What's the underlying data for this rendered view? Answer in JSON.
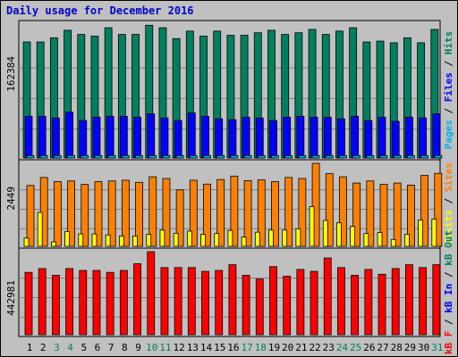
{
  "title": "Daily usage for December 2016",
  "colors": {
    "background": "#c0c0c0",
    "plot_bg": "#c0c0c0",
    "pages": "#00b0f0",
    "files": "#0000ff",
    "hits": "#008060",
    "visits": "#ffff00",
    "sites": "#ff8000",
    "kbin": "#0000ff",
    "kbout": "#008060",
    "kbf": "#ff0000",
    "weekend_day": "#008060",
    "weekday": "#000000"
  },
  "panels": [
    {
      "id": "top",
      "ymax_label": "162384",
      "side_labels": [
        {
          "text": "Pages",
          "color": "#00b0f0"
        },
        {
          "text": " / ",
          "color": "#000000"
        },
        {
          "text": "Files",
          "color": "#0000ff"
        },
        {
          "text": " / ",
          "color": "#000000"
        },
        {
          "text": "Hits",
          "color": "#008060"
        }
      ]
    },
    {
      "id": "mid",
      "ymax_label": "2449",
      "side_labels": [
        {
          "text": "Visits",
          "color": "#ffff00"
        },
        {
          "text": " / ",
          "color": "#000000"
        },
        {
          "text": "Sites",
          "color": "#ff8000"
        }
      ]
    },
    {
      "id": "bot",
      "ymax_label": "442981",
      "side_labels": [
        {
          "text": "kB F",
          "color": "#ff0000"
        },
        {
          "text": " / ",
          "color": "#000000"
        },
        {
          "text": "kB In",
          "color": "#0000ff"
        },
        {
          "text": " / ",
          "color": "#000000"
        },
        {
          "text": "kB Out",
          "color": "#008060"
        }
      ]
    }
  ],
  "chart_data": [
    {
      "type": "bar",
      "title": "Daily usage for December 2016",
      "categories": [
        "1",
        "2",
        "3",
        "4",
        "5",
        "6",
        "7",
        "8",
        "9",
        "10",
        "11",
        "12",
        "13",
        "14",
        "15",
        "16",
        "17",
        "18",
        "19",
        "20",
        "21",
        "22",
        "23",
        "24",
        "25",
        "26",
        "27",
        "28",
        "29",
        "30",
        "31"
      ],
      "weekend_days": [
        "3",
        "4",
        "10",
        "11",
        "17",
        "18",
        "24",
        "25",
        "31"
      ],
      "ylim": [
        0,
        162384
      ],
      "series": [
        {
          "name": "Hits",
          "values": [
            141000,
            141000,
            146000,
            155000,
            150000,
            148000,
            158000,
            150000,
            150000,
            161000,
            158000,
            145000,
            154000,
            148000,
            154000,
            149000,
            149000,
            152000,
            155000,
            150000,
            152000,
            156000,
            150000,
            154000,
            158000,
            141000,
            142000,
            140000,
            146000,
            140000,
            156000
          ]
        },
        {
          "name": "Files",
          "values": [
            52000,
            52000,
            50000,
            57000,
            47000,
            51000,
            52000,
            52000,
            51000,
            55000,
            50000,
            47000,
            56000,
            52000,
            49000,
            48000,
            51000,
            50000,
            47000,
            51000,
            52000,
            51000,
            51000,
            49000,
            52000,
            47000,
            51000,
            46000,
            51000,
            50000,
            55000
          ]
        },
        {
          "name": "Pages",
          "values": [
            5000,
            5000,
            5000,
            5000,
            5000,
            5000,
            5000,
            5000,
            5000,
            5000,
            5000,
            5000,
            5000,
            5000,
            5000,
            5000,
            5000,
            5000,
            5000,
            5000,
            5000,
            5000,
            5000,
            5000,
            5000,
            5000,
            5000,
            5000,
            5000,
            5000,
            5000
          ]
        }
      ]
    },
    {
      "type": "bar",
      "categories": [
        "1",
        "2",
        "3",
        "4",
        "5",
        "6",
        "7",
        "8",
        "9",
        "10",
        "11",
        "12",
        "13",
        "14",
        "15",
        "16",
        "17",
        "18",
        "19",
        "20",
        "21",
        "22",
        "23",
        "24",
        "25",
        "26",
        "27",
        "28",
        "29",
        "30",
        "31"
      ],
      "ylim": [
        0,
        2449
      ],
      "series": [
        {
          "name": "Sites",
          "values": [
            1810,
            2040,
            1920,
            1940,
            1840,
            1920,
            1940,
            1960,
            1900,
            2060,
            2010,
            1680,
            1960,
            1850,
            1980,
            2080,
            1950,
            1970,
            1920,
            2040,
            2010,
            2449,
            2150,
            2060,
            1880,
            1940,
            1840,
            1880,
            1820,
            2100,
            2160
          ]
        },
        {
          "name": "Visits",
          "values": [
            290,
            1030,
            180,
            480,
            410,
            410,
            380,
            350,
            350,
            400,
            520,
            430,
            490,
            400,
            420,
            510,
            320,
            460,
            520,
            520,
            560,
            1200,
            800,
            730,
            630,
            420,
            450,
            250,
            400,
            810,
            840
          ]
        }
      ]
    },
    {
      "type": "bar",
      "categories": [
        "1",
        "2",
        "3",
        "4",
        "5",
        "6",
        "7",
        "8",
        "9",
        "10",
        "11",
        "12",
        "13",
        "14",
        "15",
        "16",
        "17",
        "18",
        "19",
        "20",
        "21",
        "22",
        "23",
        "24",
        "25",
        "26",
        "27",
        "28",
        "29",
        "30",
        "31"
      ],
      "ylim": [
        0,
        442981
      ],
      "series": [
        {
          "name": "kB F",
          "values": [
            335000,
            355000,
            320000,
            355000,
            345000,
            345000,
            335000,
            345000,
            380000,
            442981,
            360000,
            360000,
            360000,
            340000,
            345000,
            375000,
            320000,
            300000,
            365000,
            315000,
            350000,
            340000,
            410000,
            360000,
            320000,
            350000,
            325000,
            355000,
            375000,
            360000,
            375000
          ]
        }
      ]
    }
  ]
}
